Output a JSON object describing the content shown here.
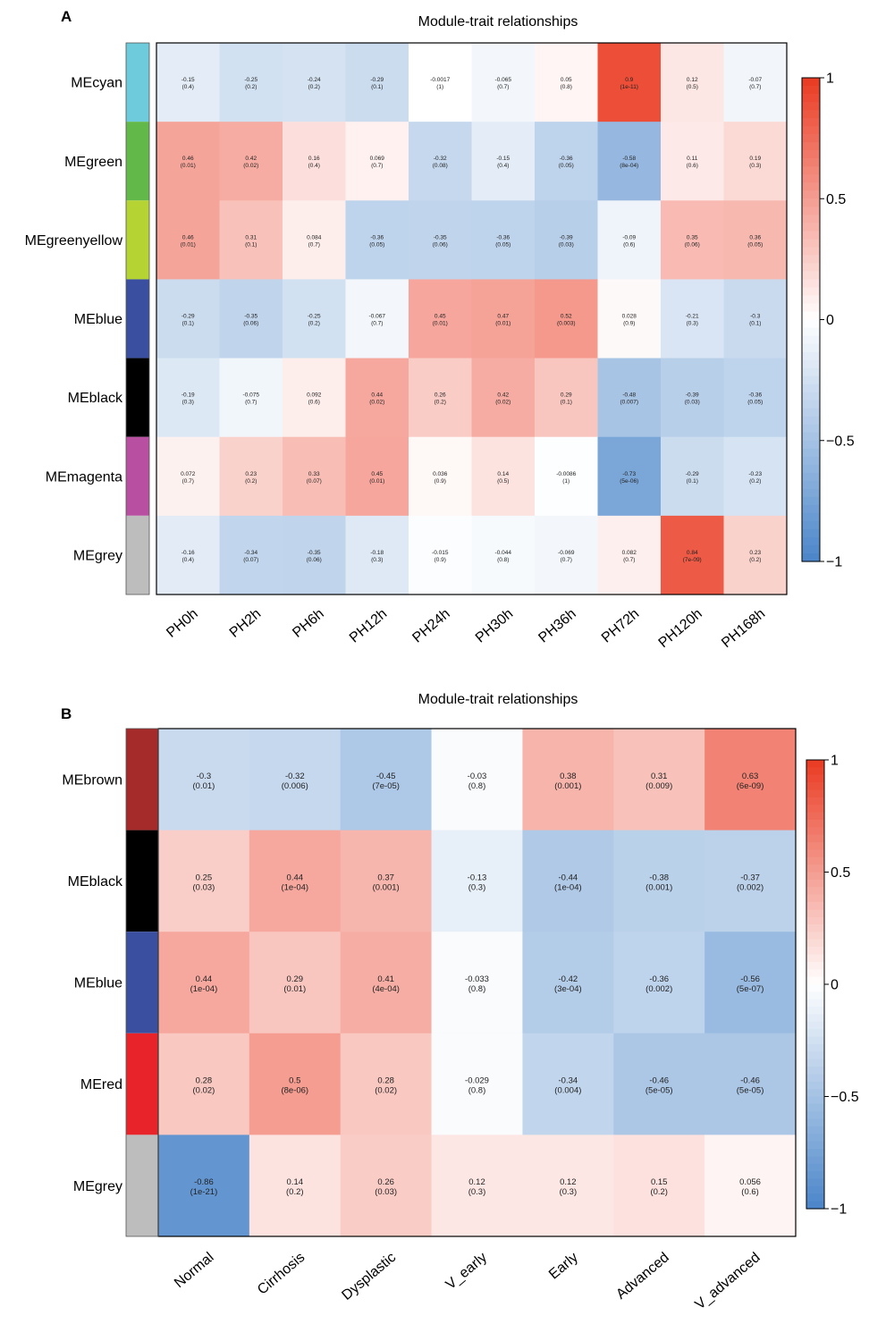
{
  "panels": [
    {
      "label": "A",
      "chart_data": {
        "type": "heatmap",
        "title": "Module-trait relationships",
        "categories": [
          "PH0h",
          "PH2h",
          "PH6h",
          "PH12h",
          "PH24h",
          "PH30h",
          "PH36h",
          "PH72h",
          "PH120h",
          "PH168h"
        ],
        "rows": [
          {
            "name": "MEcyan",
            "color": "#6dcbdb",
            "values": [
              -0.15,
              -0.25,
              -0.24,
              -0.29,
              -0.0017,
              -0.065,
              0.05,
              0.9,
              0.12,
              -0.07
            ],
            "values_text": [
              "-0.15",
              "-0.25",
              "-0.24",
              "-0.29",
              "-0.0017",
              "-0.065",
              "0.05",
              "0.9",
              "0.12",
              "-0.07"
            ],
            "pvalues": [
              "(0.4)",
              "(0.2)",
              "(0.2)",
              "(0.1)",
              "(1)",
              "(0.7)",
              "(0.8)",
              "(1e-11)",
              "(0.5)",
              "(0.7)"
            ]
          },
          {
            "name": "MEgreen",
            "color": "#63b84a",
            "values": [
              0.46,
              0.42,
              0.16,
              0.069,
              -0.32,
              -0.15,
              -0.36,
              -0.58,
              0.11,
              0.19
            ],
            "values_text": [
              "0.46",
              "0.42",
              "0.16",
              "0.069",
              "-0.32",
              "-0.15",
              "-0.36",
              "-0.58",
              "0.11",
              "0.19"
            ],
            "pvalues": [
              "(0.01)",
              "(0.02)",
              "(0.4)",
              "(0.7)",
              "(0.08)",
              "(0.4)",
              "(0.05)",
              "(8e-04)",
              "(0.6)",
              "(0.3)"
            ]
          },
          {
            "name": "MEgreenyellow",
            "color": "#b6d334",
            "values": [
              0.46,
              0.31,
              0.084,
              -0.36,
              -0.35,
              -0.36,
              -0.39,
              -0.09,
              0.35,
              0.36
            ],
            "values_text": [
              "0.46",
              "0.31",
              "0.084",
              "-0.36",
              "-0.35",
              "-0.36",
              "-0.39",
              "-0.09",
              "0.35",
              "0.36"
            ],
            "pvalues": [
              "(0.01)",
              "(0.1)",
              "(0.7)",
              "(0.05)",
              "(0.06)",
              "(0.05)",
              "(0.03)",
              "(0.6)",
              "(0.06)",
              "(0.05)"
            ]
          },
          {
            "name": "MEblue",
            "color": "#3a4fa0",
            "values": [
              -0.29,
              -0.35,
              -0.25,
              -0.067,
              0.45,
              0.47,
              0.52,
              0.028,
              -0.21,
              -0.3
            ],
            "values_text": [
              "-0.29",
              "-0.35",
              "-0.25",
              "-0.067",
              "0.45",
              "0.47",
              "0.52",
              "0.028",
              "-0.21",
              "-0.3"
            ],
            "pvalues": [
              "(0.1)",
              "(0.06)",
              "(0.2)",
              "(0.7)",
              "(0.01)",
              "(0.01)",
              "(0.003)",
              "(0.9)",
              "(0.3)",
              "(0.1)"
            ]
          },
          {
            "name": "MEblack",
            "color": "#000000",
            "values": [
              -0.19,
              -0.075,
              0.092,
              0.44,
              0.26,
              0.42,
              0.29,
              -0.48,
              -0.39,
              -0.36
            ],
            "values_text": [
              "-0.19",
              "-0.075",
              "0.092",
              "0.44",
              "0.26",
              "0.42",
              "0.29",
              "-0.48",
              "-0.39",
              "-0.36"
            ],
            "pvalues": [
              "(0.3)",
              "(0.7)",
              "(0.6)",
              "(0.02)",
              "(0.2)",
              "(0.02)",
              "(0.1)",
              "(0.007)",
              "(0.03)",
              "(0.05)"
            ]
          },
          {
            "name": "MEmagenta",
            "color": "#b94fa0",
            "values": [
              0.072,
              0.23,
              0.33,
              0.45,
              0.036,
              0.14,
              -0.0086,
              -0.73,
              -0.29,
              -0.23
            ],
            "values_text": [
              "0.072",
              "0.23",
              "0.33",
              "0.45",
              "0.036",
              "0.14",
              "-0.0086",
              "-0.73",
              "-0.29",
              "-0.23"
            ],
            "pvalues": [
              "(0.7)",
              "(0.2)",
              "(0.07)",
              "(0.01)",
              "(0.9)",
              "(0.5)",
              "(1)",
              "(5e-06)",
              "(0.1)",
              "(0.2)"
            ]
          },
          {
            "name": "MEgrey",
            "color": "#bdbdbd",
            "values": [
              -0.16,
              -0.34,
              -0.35,
              -0.18,
              -0.015,
              -0.044,
              -0.069,
              0.082,
              0.84,
              0.23
            ],
            "values_text": [
              "-0.16",
              "-0.34",
              "-0.35",
              "-0.18",
              "-0.015",
              "-0.044",
              "-0.069",
              "0.082",
              "0.84",
              "0.23"
            ],
            "pvalues": [
              "(0.4)",
              "(0.07)",
              "(0.06)",
              "(0.3)",
              "(0.9)",
              "(0.8)",
              "(0.7)",
              "(0.7)",
              "(7e-09)",
              "(0.2)"
            ]
          }
        ],
        "color_scale": {
          "min": -1,
          "max": 1,
          "low": "#4a85c9",
          "mid": "#ffffff",
          "high": "#ea3a22"
        },
        "legend_ticks": [
          1,
          0.5,
          0,
          -0.5,
          -1
        ],
        "legend_tick_labels": [
          "1",
          "0.5",
          "0",
          "−0.5",
          "−1"
        ]
      }
    },
    {
      "label": "B",
      "chart_data": {
        "type": "heatmap",
        "title": "Module-trait relationships",
        "categories": [
          "Normal",
          "Cirrhosis",
          "Dysplastic",
          "V_early",
          "Early",
          "Advanced",
          "V_advanced"
        ],
        "rows": [
          {
            "name": "MEbrown",
            "color": "#a52a2a",
            "values": [
              -0.3,
              -0.32,
              -0.45,
              -0.03,
              0.38,
              0.31,
              0.63
            ],
            "values_text": [
              "-0.3",
              "-0.32",
              "-0.45",
              "-0.03",
              "0.38",
              "0.31",
              "0.63"
            ],
            "pvalues": [
              "(0.01)",
              "(0.006)",
              "(7e-05)",
              "(0.8)",
              "(0.001)",
              "(0.009)",
              "(6e-09)"
            ]
          },
          {
            "name": "MEblack",
            "color": "#000000",
            "values": [
              0.25,
              0.44,
              0.37,
              -0.13,
              -0.44,
              -0.38,
              -0.37
            ],
            "values_text": [
              "0.25",
              "0.44",
              "0.37",
              "-0.13",
              "-0.44",
              "-0.38",
              "-0.37"
            ],
            "pvalues": [
              "(0.03)",
              "(1e-04)",
              "(0.001)",
              "(0.3)",
              "(1e-04)",
              "(0.001)",
              "(0.002)"
            ]
          },
          {
            "name": "MEblue",
            "color": "#3a4fa0",
            "values": [
              0.44,
              0.29,
              0.41,
              -0.033,
              -0.42,
              -0.36,
              -0.56
            ],
            "values_text": [
              "0.44",
              "0.29",
              "0.41",
              "-0.033",
              "-0.42",
              "-0.36",
              "-0.56"
            ],
            "pvalues": [
              "(1e-04)",
              "(0.01)",
              "(4e-04)",
              "(0.8)",
              "(3e-04)",
              "(0.002)",
              "(5e-07)"
            ]
          },
          {
            "name": "MEred",
            "color": "#e8242a",
            "values": [
              0.28,
              0.5,
              0.28,
              -0.029,
              -0.34,
              -0.46,
              -0.46
            ],
            "values_text": [
              "0.28",
              "0.5",
              "0.28",
              "-0.029",
              "-0.34",
              "-0.46",
              "-0.46"
            ],
            "pvalues": [
              "(0.02)",
              "(8e-06)",
              "(0.02)",
              "(0.8)",
              "(0.004)",
              "(5e-05)",
              "(5e-05)"
            ]
          },
          {
            "name": "MEgrey",
            "color": "#bdbdbd",
            "values": [
              -0.86,
              0.14,
              0.26,
              0.12,
              0.12,
              0.15,
              0.056
            ],
            "values_text": [
              "-0.86",
              "0.14",
              "0.26",
              "0.12",
              "0.12",
              "0.15",
              "0.056"
            ],
            "pvalues": [
              "(1e-21)",
              "(0.2)",
              "(0.03)",
              "(0.3)",
              "(0.3)",
              "(0.2)",
              "(0.6)"
            ]
          }
        ],
        "color_scale": {
          "min": -1,
          "max": 1,
          "low": "#4a85c9",
          "mid": "#ffffff",
          "high": "#ea3a22"
        },
        "legend_ticks": [
          1,
          0.5,
          0,
          -0.5,
          -1
        ],
        "legend_tick_labels": [
          "1",
          "0.5",
          "0",
          "−0.5",
          "−1"
        ]
      }
    }
  ]
}
